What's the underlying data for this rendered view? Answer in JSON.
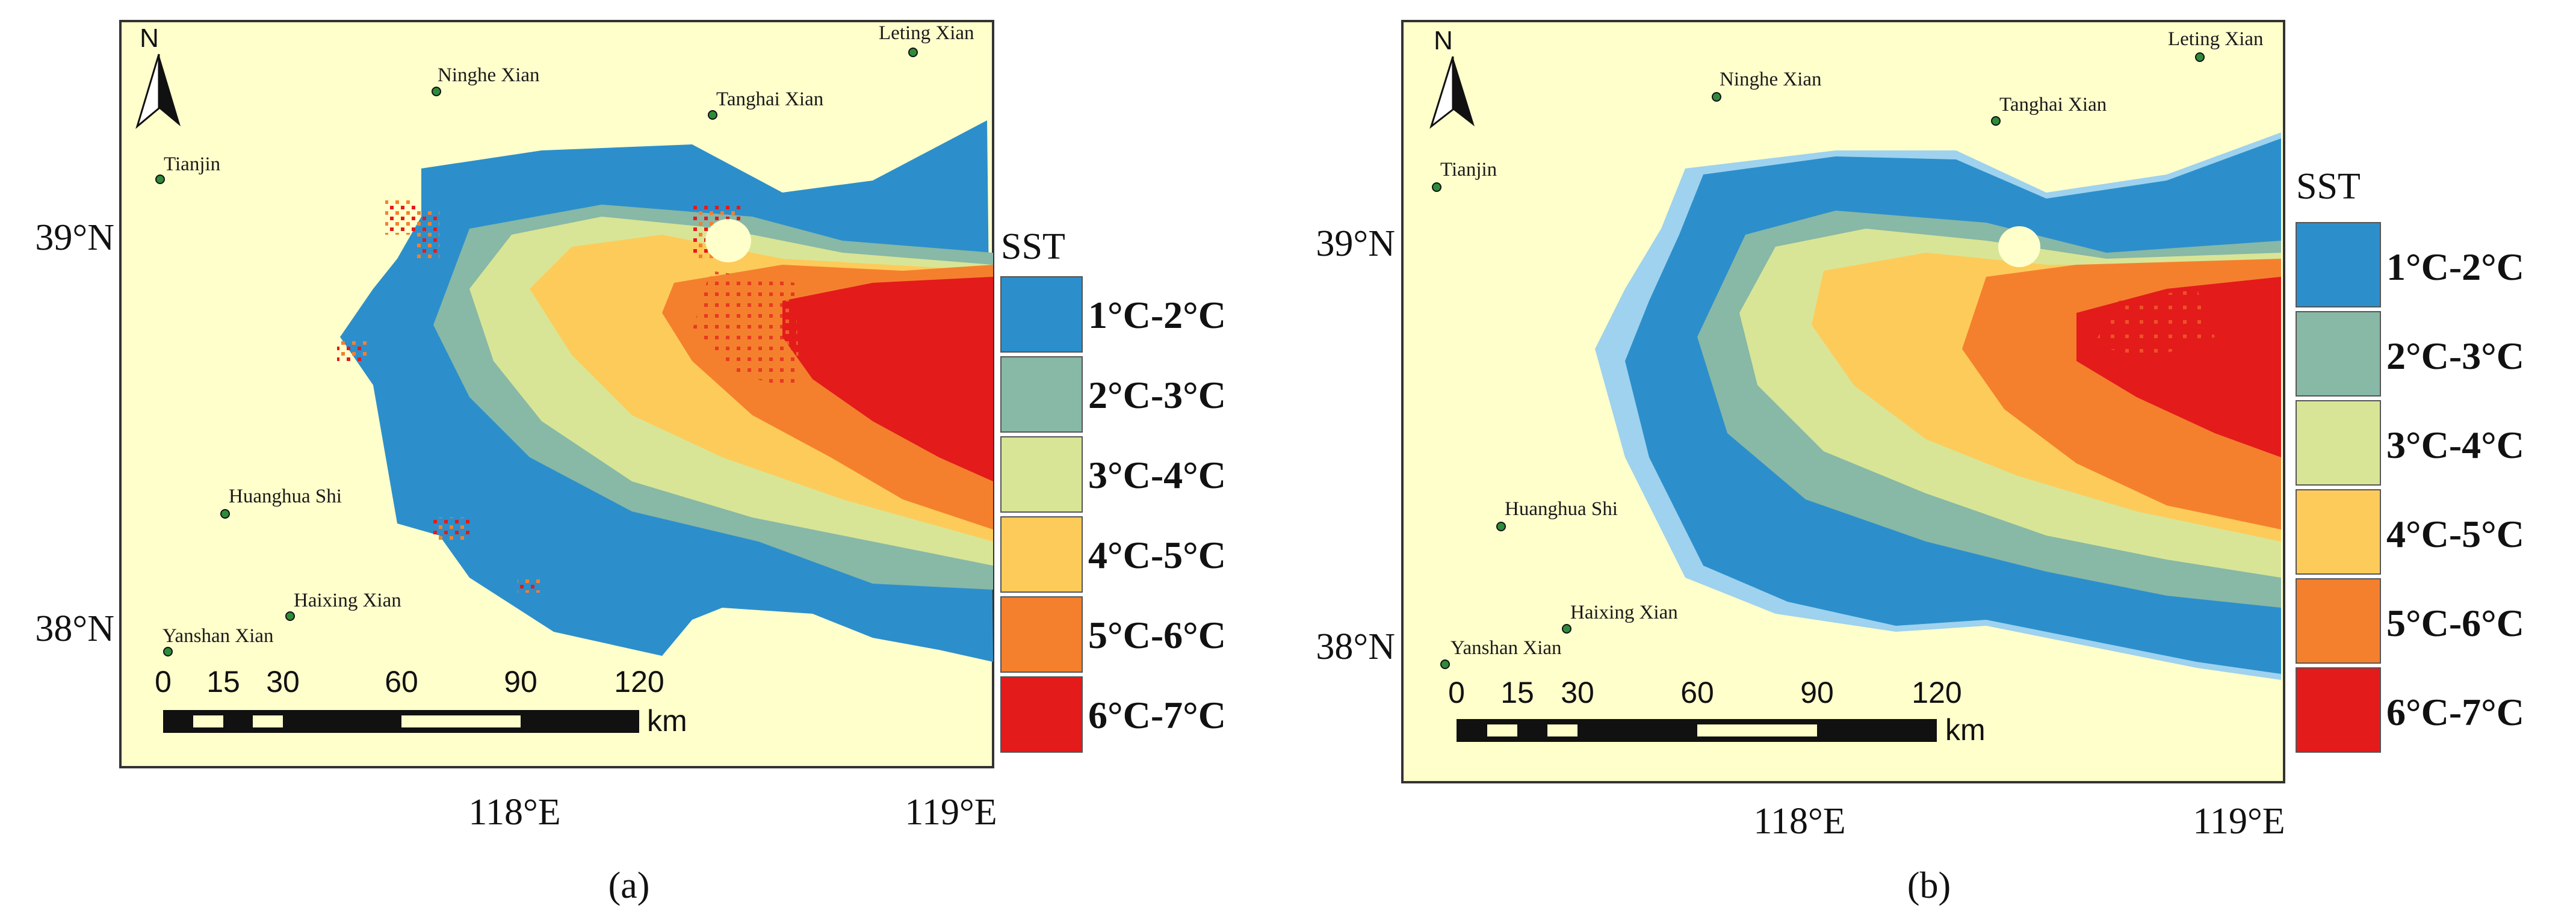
{
  "colors": {
    "land": "#FFFFCC",
    "c1": "#2C8FCB",
    "c2": "#88B8A6",
    "c3": "#D8E596",
    "c4": "#FDCB5A",
    "c5": "#F4802E",
    "c6": "#E31B1B",
    "shallow": "#9ED2EE",
    "site": "#2E8B3A"
  },
  "panels": [
    {
      "caption": "(a)",
      "lat_labels": [
        "39°N",
        "38°N"
      ],
      "lon_labels": [
        "118°E",
        "119°E"
      ],
      "north": "N",
      "places": [
        "Leting Xian",
        "Ninghe Xian",
        "Tanghai Xian",
        "Tianjin",
        "Huanghua Shi",
        "Haixing Xian",
        "Yanshan Xian"
      ],
      "scale": {
        "ticks": [
          "0",
          "15",
          "30",
          "60",
          "90",
          "120"
        ],
        "unit": "km"
      },
      "legend": {
        "title": "SST",
        "classes": [
          "1°C-2°C",
          "2°C-3°C",
          "3°C-4°C",
          "4°C-5°C",
          "5°C-6°C",
          "6°C-7°C"
        ]
      }
    },
    {
      "caption": "(b)",
      "lat_labels": [
        "39°N",
        "38°N"
      ],
      "lon_labels": [
        "118°E",
        "119°E"
      ],
      "north": "N",
      "places": [
        "Leting Xian",
        "Ninghe Xian",
        "Tanghai Xian",
        "Tianjin",
        "Huanghua Shi",
        "Haixing Xian",
        "Yanshan Xian"
      ],
      "scale": {
        "ticks": [
          "0",
          "15",
          "30",
          "60",
          "90",
          "120"
        ],
        "unit": "km"
      },
      "legend": {
        "title": "SST",
        "classes": [
          "1°C-2°C",
          "2°C-3°C",
          "3°C-4°C",
          "4°C-5°C",
          "5°C-6°C",
          "6°C-7°C"
        ]
      }
    }
  ]
}
